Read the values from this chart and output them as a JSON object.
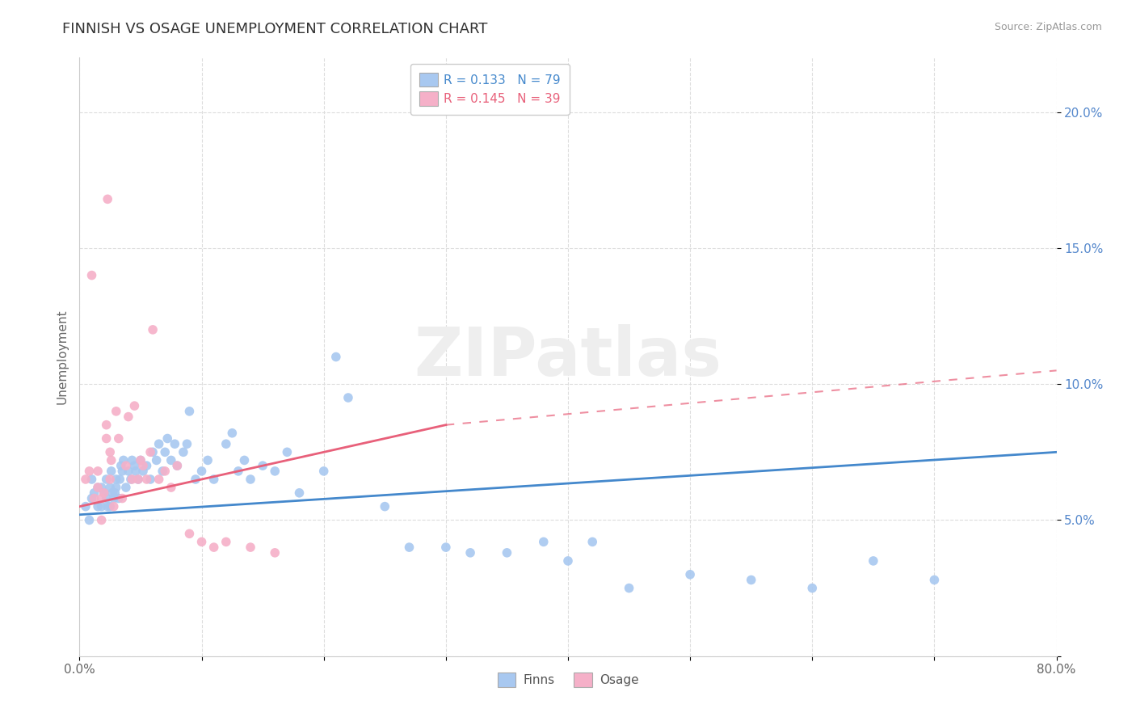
{
  "title": "FINNISH VS OSAGE UNEMPLOYMENT CORRELATION CHART",
  "source_text": "Source: ZipAtlas.com",
  "ylabel": "Unemployment",
  "xlim": [
    0.0,
    0.8
  ],
  "ylim": [
    0.0,
    0.22
  ],
  "x_ticks": [
    0.0,
    0.1,
    0.2,
    0.3,
    0.4,
    0.5,
    0.6,
    0.7,
    0.8
  ],
  "x_tick_labels": [
    "0.0%",
    "",
    "",
    "",
    "",
    "",
    "",
    "",
    "80.0%"
  ],
  "y_ticks": [
    0.0,
    0.05,
    0.1,
    0.15,
    0.2
  ],
  "y_tick_labels": [
    "",
    "5.0%",
    "10.0%",
    "15.0%",
    "20.0%"
  ],
  "finns_color": "#a8c8f0",
  "osage_color": "#f5b0c8",
  "finns_line_color": "#4488cc",
  "osage_line_color": "#e8607a",
  "legend_finns_label": "R = 0.133   N = 79",
  "legend_osage_label": "R = 0.145   N = 39",
  "watermark": "ZIPatlas",
  "finns_x": [
    0.005,
    0.008,
    0.01,
    0.01,
    0.012,
    0.015,
    0.015,
    0.018,
    0.018,
    0.02,
    0.022,
    0.022,
    0.023,
    0.025,
    0.025,
    0.026,
    0.027,
    0.028,
    0.029,
    0.03,
    0.03,
    0.032,
    0.033,
    0.034,
    0.035,
    0.036,
    0.038,
    0.04,
    0.042,
    0.043,
    0.045,
    0.046,
    0.048,
    0.05,
    0.052,
    0.055,
    0.058,
    0.06,
    0.063,
    0.065,
    0.068,
    0.07,
    0.072,
    0.075,
    0.078,
    0.08,
    0.085,
    0.088,
    0.09,
    0.095,
    0.1,
    0.105,
    0.11,
    0.12,
    0.125,
    0.13,
    0.135,
    0.14,
    0.15,
    0.16,
    0.17,
    0.18,
    0.2,
    0.21,
    0.22,
    0.25,
    0.27,
    0.3,
    0.32,
    0.35,
    0.38,
    0.4,
    0.42,
    0.45,
    0.5,
    0.55,
    0.6,
    0.65,
    0.7
  ],
  "finns_y": [
    0.055,
    0.05,
    0.058,
    0.065,
    0.06,
    0.055,
    0.062,
    0.055,
    0.062,
    0.06,
    0.058,
    0.065,
    0.055,
    0.062,
    0.055,
    0.068,
    0.06,
    0.058,
    0.06,
    0.065,
    0.062,
    0.058,
    0.065,
    0.07,
    0.068,
    0.072,
    0.062,
    0.068,
    0.065,
    0.072,
    0.07,
    0.068,
    0.065,
    0.072,
    0.068,
    0.07,
    0.065,
    0.075,
    0.072,
    0.078,
    0.068,
    0.075,
    0.08,
    0.072,
    0.078,
    0.07,
    0.075,
    0.078,
    0.09,
    0.065,
    0.068,
    0.072,
    0.065,
    0.078,
    0.082,
    0.068,
    0.072,
    0.065,
    0.07,
    0.068,
    0.075,
    0.06,
    0.068,
    0.11,
    0.095,
    0.055,
    0.04,
    0.04,
    0.038,
    0.038,
    0.042,
    0.035,
    0.042,
    0.025,
    0.03,
    0.028,
    0.025,
    0.035,
    0.028
  ],
  "osage_x": [
    0.005,
    0.008,
    0.01,
    0.012,
    0.015,
    0.015,
    0.018,
    0.018,
    0.02,
    0.022,
    0.022,
    0.023,
    0.025,
    0.025,
    0.026,
    0.028,
    0.03,
    0.032,
    0.035,
    0.038,
    0.04,
    0.043,
    0.045,
    0.048,
    0.05,
    0.052,
    0.055,
    0.058,
    0.06,
    0.065,
    0.07,
    0.075,
    0.08,
    0.09,
    0.1,
    0.11,
    0.12,
    0.14,
    0.16
  ],
  "osage_y": [
    0.065,
    0.068,
    0.14,
    0.058,
    0.062,
    0.068,
    0.058,
    0.05,
    0.06,
    0.085,
    0.08,
    0.168,
    0.065,
    0.075,
    0.072,
    0.055,
    0.09,
    0.08,
    0.058,
    0.07,
    0.088,
    0.065,
    0.092,
    0.065,
    0.072,
    0.07,
    0.065,
    0.075,
    0.12,
    0.065,
    0.068,
    0.062,
    0.07,
    0.045,
    0.042,
    0.04,
    0.042,
    0.04,
    0.038
  ],
  "finns_line_start_x": 0.0,
  "finns_line_end_x": 0.8,
  "finns_line_start_y": 0.052,
  "finns_line_end_y": 0.075,
  "osage_line_solid_start_x": 0.0,
  "osage_line_solid_end_x": 0.3,
  "osage_line_solid_start_y": 0.055,
  "osage_line_solid_end_y": 0.085,
  "osage_line_dash_start_x": 0.3,
  "osage_line_dash_end_x": 0.8,
  "osage_line_dash_start_y": 0.085,
  "osage_line_dash_end_y": 0.105
}
